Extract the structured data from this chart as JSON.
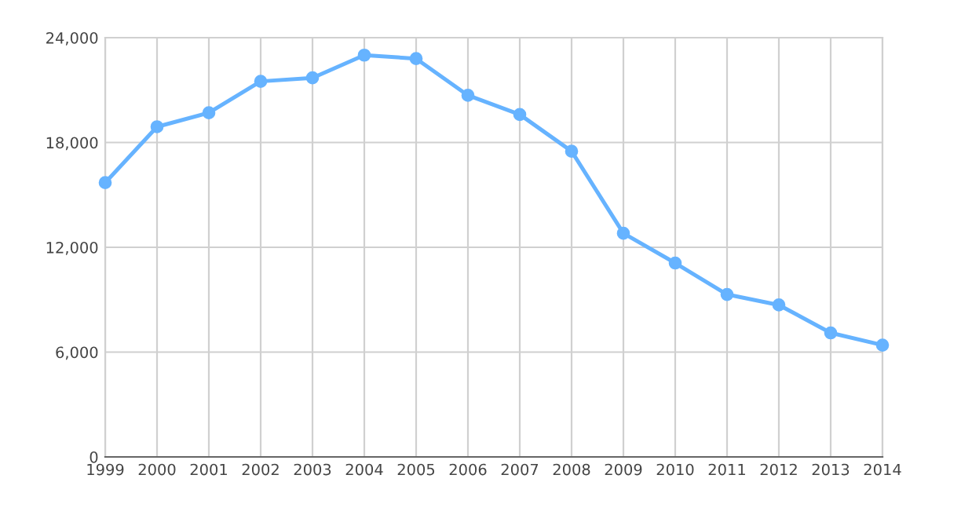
{
  "chart_data": {
    "type": "line",
    "x": [
      1999,
      2000,
      2001,
      2002,
      2003,
      2004,
      2005,
      2006,
      2007,
      2008,
      2009,
      2010,
      2011,
      2012,
      2013,
      2014
    ],
    "series": [
      {
        "color": "#66b3ff",
        "values": [
          15700,
          18900,
          19700,
          21500,
          21700,
          23000,
          22800,
          20700,
          19600,
          17500,
          12800,
          11100,
          9300,
          8700,
          7100,
          6400
        ]
      }
    ],
    "xlim": [
      1999,
      2014
    ],
    "xticks": [
      1999,
      2000,
      2001,
      2002,
      2003,
      2004,
      2005,
      2006,
      2007,
      2008,
      2009,
      2010,
      2011,
      2012,
      2013,
      2014
    ],
    "ylim": [
      0,
      24000
    ],
    "yticks": [
      {
        "value": 0,
        "label": "0"
      },
      {
        "value": 6000,
        "label": "6,000"
      },
      {
        "value": 12000,
        "label": "12,000"
      },
      {
        "value": 18000,
        "label": "18,000"
      },
      {
        "value": 24000,
        "label": "24,000"
      }
    ],
    "grid": true,
    "marker": "circle",
    "line_style": "solid",
    "legend": false
  }
}
